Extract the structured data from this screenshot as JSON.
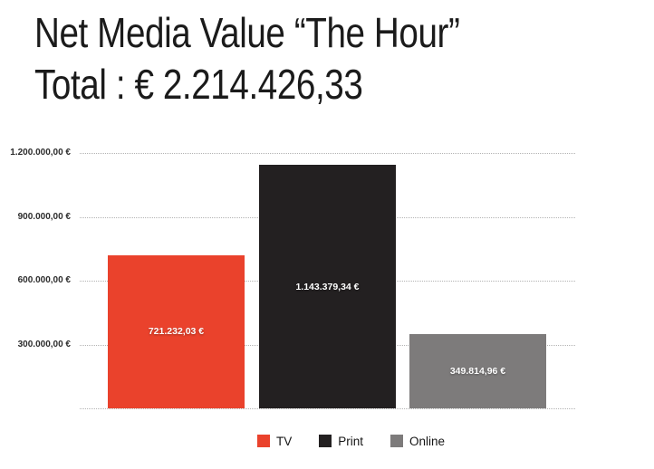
{
  "title": {
    "line1": "Net Media Value “The Hour”",
    "line2": "Total : € 2.214.426,33"
  },
  "colors": {
    "background": "#ffffff",
    "title_text": "#1b1b1b",
    "gridline": "#b3b3b3",
    "tick_text": "#2d2d2d",
    "bar_label_text": "#ffffff",
    "legend_text": "#141414"
  },
  "chart_data": {
    "type": "bar",
    "title": "Net Media Value “The Hour”",
    "subtitle": "Total : € 2.214.426,33",
    "total_value": 2214426.33,
    "categories": [
      "TV",
      "Print",
      "Online"
    ],
    "series": [
      {
        "name": "TV",
        "value": 721232.03,
        "label": "721.232,03 €",
        "color": "#ea422c"
      },
      {
        "name": "Print",
        "value": 1143379.34,
        "label": "1.143.379,34 €",
        "color": "#232021"
      },
      {
        "name": "Online",
        "value": 349814.96,
        "label": "349.814,96 €",
        "color": "#7d7b7b"
      }
    ],
    "y_axis": {
      "range": [
        0,
        1200000
      ],
      "ticks": [
        {
          "value": 1200000,
          "label": "1.200.000,00 €"
        },
        {
          "value": 900000,
          "label": "900.000,00 €"
        },
        {
          "value": 600000,
          "label": "600.000,00 €"
        },
        {
          "value": 300000,
          "label": "300.000,00 €"
        }
      ],
      "gridlines": "dotted"
    },
    "legend": {
      "position": "bottom",
      "items": [
        "TV",
        "Print",
        "Online"
      ]
    }
  }
}
